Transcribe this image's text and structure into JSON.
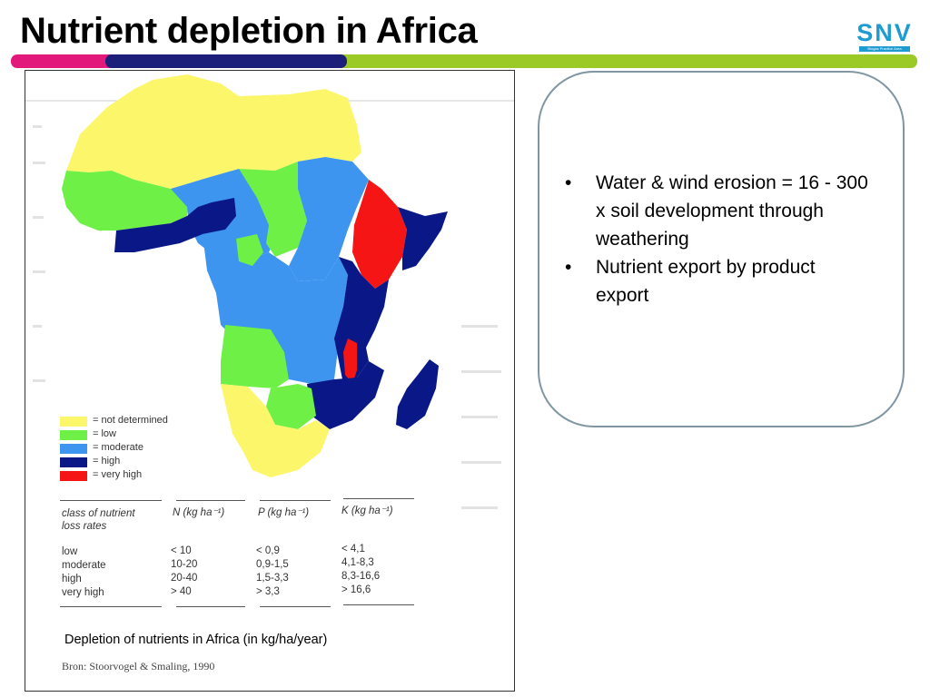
{
  "slide": {
    "title": "Nutrient depletion in Africa"
  },
  "logo": {
    "word": "SNV",
    "tagline": "Biogas Practice Area"
  },
  "figure": {
    "legend": [
      {
        "label": "= not determined",
        "color": "#fbf66a"
      },
      {
        "label": "= low",
        "color": "#6ef046"
      },
      {
        "label": "= moderate",
        "color": "#3d95ef"
      },
      {
        "label": "= high",
        "color": "#0a1786"
      },
      {
        "label": "= very high",
        "color": "#f51515"
      }
    ],
    "table": {
      "header_class": "class of nutrient loss rates",
      "header_n": "N (kg ha⁻¹)",
      "header_p": "P (kg ha⁻¹)",
      "header_k": "K (kg ha⁻¹)",
      "rows": [
        {
          "class": "low",
          "n": "< 10",
          "p": "< 0,9",
          "k": "< 4,1"
        },
        {
          "class": "moderate",
          "n": "10-20",
          "p": "0,9-1,5",
          "k": "4,1-8,3"
        },
        {
          "class": "high",
          "n": "20-40",
          "p": "1,5-3,3",
          "k": "8,3-16,6"
        },
        {
          "class": "very high",
          "n": "> 40",
          "p": "> 3,3",
          "k": "> 16,6"
        }
      ]
    },
    "caption": "Depletion of nutrients in Africa (in kg/ha/year)",
    "source": "Bron: Stoorvogel & Smaling, 1990"
  },
  "callout": {
    "bullets": [
      "Water & wind erosion = 16 - 300 x soil development through weathering",
      "Nutrient export by product export"
    ]
  },
  "colors": {
    "title": "#000000",
    "stripe_pink": "#e2187a",
    "stripe_navy": "#1c1f7a",
    "stripe_green": "#9bc925",
    "logo": "#1e9bd1",
    "callout_border": "#8097a3"
  }
}
